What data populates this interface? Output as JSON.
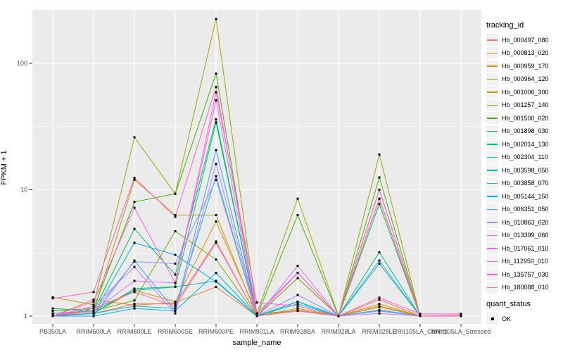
{
  "legend": {
    "tracking_title": "tracking_id",
    "quant_title": "quant_status",
    "quant_ok_label": "OK"
  },
  "chart_data": {
    "type": "line",
    "title": "",
    "xlabel": "sample_name",
    "ylabel": "FPKM + 1",
    "y_scale": "log10",
    "y_ticks": [
      1,
      10,
      100
    ],
    "y_tick_labels": [
      "1",
      "10",
      "100"
    ],
    "y_minor_ticks": [
      3.1623,
      31.623
    ],
    "ylim": [
      0.92,
      280
    ],
    "grid": "on",
    "panel_background": "#EBEBEB",
    "gridline_color": "#FFFFFF",
    "tick_label_color": "#4D4D4D",
    "marker": "small-black-square",
    "legend_position": "right",
    "categories": [
      "PB350LA",
      "RRIM600LA",
      "RRIM600LE",
      "RRIM600SE",
      "RRIM600PE",
      "RRIM901LA",
      "RRIM928BA",
      "RRIM928LA",
      "RRIM928LE",
      "RRII105LA_Control",
      "RRII105LA_Stressed"
    ],
    "series": [
      {
        "name": "Hb_000497_080",
        "color": "#F8766D",
        "values": [
          1.02,
          1.05,
          1.25,
          1.25,
          3.9,
          1.0,
          2.0,
          1.0,
          1.35,
          1.0,
          1.0
        ]
      },
      {
        "name": "Hb_000813_020",
        "color": "#EA8331",
        "values": [
          1.0,
          1.35,
          1.22,
          1.28,
          1.7,
          1.0,
          1.12,
          1.0,
          1.18,
          1.0,
          1.0
        ]
      },
      {
        "name": "Hb_000959_170",
        "color": "#D89000",
        "values": [
          1.0,
          1.05,
          1.6,
          1.3,
          5.6,
          1.05,
          1.1,
          1.0,
          1.2,
          1.0,
          1.0
        ]
      },
      {
        "name": "Hb_000964_120",
        "color": "#C09B00",
        "values": [
          1.0,
          1.1,
          12.0,
          6.3,
          6.3,
          1.0,
          1.15,
          1.0,
          1.25,
          1.0,
          1.0
        ]
      },
      {
        "name": "Hb_001006_300",
        "color": "#A3A500",
        "values": [
          1.41,
          1.23,
          26.0,
          9.3,
          225.0,
          1.05,
          8.5,
          1.0,
          19.0,
          1.0,
          1.0
        ]
      },
      {
        "name": "Hb_001257_140",
        "color": "#7CAE00",
        "values": [
          1.05,
          1.1,
          1.33,
          4.7,
          2.8,
          1.0,
          2.0,
          1.0,
          8.5,
          1.0,
          1.0
        ]
      },
      {
        "name": "Hb_001500_020",
        "color": "#39B600",
        "values": [
          1.1,
          1.15,
          8.0,
          9.3,
          83.0,
          1.0,
          6.3,
          1.0,
          12.5,
          1.0,
          1.0
        ]
      },
      {
        "name": "Hb_001898_030",
        "color": "#00BB4E",
        "values": [
          1.15,
          1.1,
          4.9,
          2.13,
          36.0,
          1.0,
          1.3,
          1.0,
          7.7,
          1.0,
          1.0
        ]
      },
      {
        "name": "Hb_002014_130",
        "color": "#00BF7D",
        "values": [
          1.0,
          1.05,
          1.65,
          1.71,
          34.0,
          1.0,
          1.3,
          1.0,
          3.2,
          1.0,
          1.0
        ]
      },
      {
        "name": "Hb_002304_110",
        "color": "#00C1A3",
        "values": [
          1.05,
          1.1,
          1.6,
          1.7,
          1.9,
          1.0,
          1.3,
          1.0,
          2.6,
          1.0,
          1.0
        ]
      },
      {
        "name": "Hb_003598_050",
        "color": "#00BFC4",
        "values": [
          1.0,
          1.05,
          1.2,
          1.15,
          12.8,
          1.0,
          1.3,
          1.0,
          1.1,
          1.0,
          1.0
        ]
      },
      {
        "name": "Hb_003858_070",
        "color": "#00BADE",
        "values": [
          1.0,
          1.0,
          1.15,
          1.1,
          2.2,
          1.0,
          1.25,
          1.0,
          1.12,
          1.0,
          1.0
        ]
      },
      {
        "name": "Hb_005144_150",
        "color": "#00B0F6",
        "values": [
          1.0,
          1.05,
          3.8,
          3.05,
          1.87,
          1.0,
          1.3,
          1.0,
          1.1,
          1.0,
          1.0
        ]
      },
      {
        "name": "Hb_006351_050",
        "color": "#35A2FF",
        "values": [
          1.0,
          1.0,
          2.75,
          1.1,
          20.6,
          1.0,
          1.1,
          1.0,
          2.75,
          1.0,
          1.0
        ]
      },
      {
        "name": "Hb_010863_020",
        "color": "#9590FF",
        "values": [
          1.05,
          1.08,
          2.7,
          2.6,
          12.0,
          1.0,
          1.47,
          1.0,
          1.1,
          1.0,
          1.0
        ]
      },
      {
        "name": "Hb_013399_060",
        "color": "#C77CFF",
        "values": [
          1.0,
          1.2,
          2.45,
          1.05,
          16.0,
          1.0,
          2.5,
          1.0,
          1.05,
          1.0,
          1.0
        ]
      },
      {
        "name": "Hb_017061_010",
        "color": "#E76BF3",
        "values": [
          1.02,
          1.1,
          1.9,
          1.83,
          51.0,
          1.0,
          2.2,
          1.0,
          10.0,
          1.0,
          1.0
        ]
      },
      {
        "name": "Hb_112950_010",
        "color": "#FA62DB",
        "values": [
          1.0,
          1.3,
          7.2,
          1.83,
          59.0,
          1.28,
          1.2,
          1.0,
          1.4,
          1.04,
          1.04
        ]
      },
      {
        "name": "Hb_135757_030",
        "color": "#FF62BC",
        "values": [
          1.38,
          1.55,
          12.4,
          6.1,
          65.0,
          1.05,
          2.2,
          1.0,
          10.0,
          1.0,
          1.0
        ]
      },
      {
        "name": "Hb_180088_010",
        "color": "#FF6A98",
        "values": [
          1.0,
          1.15,
          1.55,
          1.2,
          3.8,
          1.0,
          1.1,
          1.0,
          8.5,
          1.0,
          1.02
        ]
      }
    ],
    "quant_status": {
      "label": "OK",
      "marker_color": "#000000"
    }
  }
}
